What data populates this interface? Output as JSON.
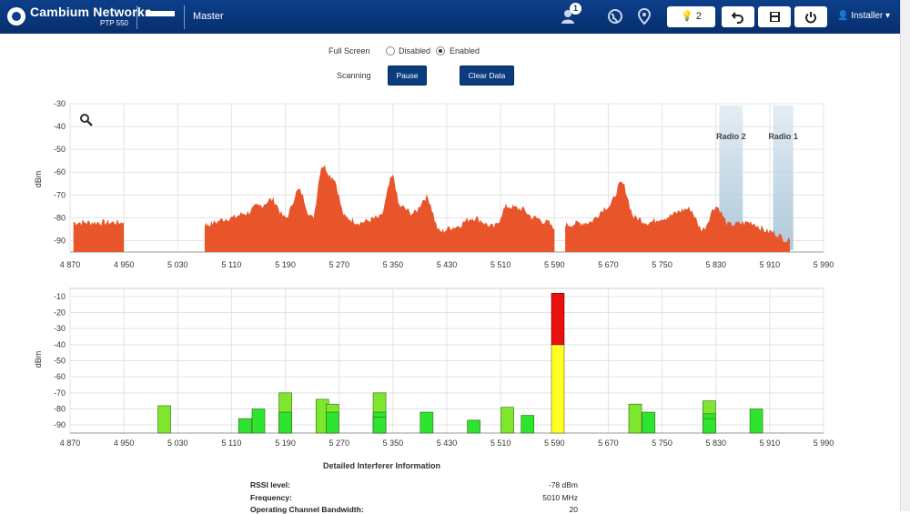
{
  "header": {
    "brand": "Cambium Networks",
    "model": "PTP 550",
    "role": "Master",
    "alarm_count": "1",
    "notifications_count": "2",
    "user": "Installer"
  },
  "controls": {
    "full_screen_label": "Full Screen",
    "disabled_label": "Disabled",
    "enabled_label": "Enabled",
    "scanning_label": "Scanning",
    "pause_label": "Pause",
    "clear_label": "Clear Data"
  },
  "spectrum": {
    "ylabel": "dBm",
    "yticks": [
      "-30",
      "-40",
      "-50",
      "-60",
      "-70",
      "-80",
      "-90"
    ],
    "xticks": [
      "4 870",
      "4 950",
      "5 030",
      "5 110",
      "5 190",
      "5 270",
      "5 350",
      "5 430",
      "5 510",
      "5 590",
      "5 670",
      "5 750",
      "5 830",
      "5 910",
      "5 990"
    ],
    "radio_labels": [
      "Radio 2",
      "Radio 1"
    ]
  },
  "chart_data": [
    {
      "type": "area",
      "title": "",
      "ylabel": "dBm",
      "ylim": [
        -95,
        -30
      ],
      "xlim": [
        4870,
        5990
      ],
      "x": [
        4875,
        4950,
        5007,
        5030,
        5070,
        5110,
        5130,
        5150,
        5170,
        5190,
        5210,
        5230,
        5245,
        5260,
        5280,
        5300,
        5330,
        5350,
        5360,
        5380,
        5400,
        5420,
        5440,
        5470,
        5500,
        5520,
        5540,
        5560,
        5580,
        5590,
        5600,
        5606,
        5640,
        5670,
        5690,
        5710,
        5730,
        5750,
        5790,
        5810,
        5830,
        5850,
        5880,
        5910,
        5940
      ],
      "series": [
        {
          "values": [
            -82,
            -82,
            null,
            null,
            -83,
            -80,
            -78,
            -75,
            -72,
            -80,
            -68,
            -80,
            -57,
            -62,
            -80,
            -82,
            -80,
            -62,
            -75,
            -78,
            -71,
            -86,
            -84,
            -80,
            -84,
            -75,
            -76,
            -80,
            -82,
            -85,
            null,
            -83,
            -82,
            -75,
            -65,
            -80,
            -82,
            -80,
            -76,
            -85,
            -75,
            -83,
            -82,
            -86,
            -90
          ]
        }
      ],
      "annotations": [
        "Radio 2",
        "Radio 1"
      ]
    },
    {
      "type": "bar",
      "title": "",
      "ylabel": "dBm",
      "ylim": [
        -95,
        -5
      ],
      "xlim": [
        4870,
        5990
      ],
      "bars": [
        {
          "freq": 5010,
          "value": -78
        },
        {
          "freq": 5130,
          "value": -86
        },
        {
          "freq": 5150,
          "value": -80
        },
        {
          "freq": 5190,
          "value": -70
        },
        {
          "freq": 5190,
          "value": -82
        },
        {
          "freq": 5245,
          "value": -74
        },
        {
          "freq": 5260,
          "value": -77
        },
        {
          "freq": 5260,
          "value": -82
        },
        {
          "freq": 5330,
          "value": -70
        },
        {
          "freq": 5330,
          "value": -82
        },
        {
          "freq": 5330,
          "value": -85
        },
        {
          "freq": 5400,
          "value": -82
        },
        {
          "freq": 5470,
          "value": -87
        },
        {
          "freq": 5520,
          "value": -79
        },
        {
          "freq": 5550,
          "value": -84
        },
        {
          "freq": 5595,
          "value": -8
        },
        {
          "freq": 5710,
          "value": -77
        },
        {
          "freq": 5730,
          "value": -82
        },
        {
          "freq": 5820,
          "value": -75
        },
        {
          "freq": 5820,
          "value": -83
        },
        {
          "freq": 5820,
          "value": -86
        },
        {
          "freq": 5890,
          "value": -80
        }
      ]
    }
  ],
  "bars_meta": {
    "yticks": [
      "-10",
      "-20",
      "-30",
      "-40",
      "-50",
      "-60",
      "-70",
      "-80",
      "-90"
    ]
  },
  "detail": {
    "title": "Detailed Interferer Information",
    "rows": [
      {
        "key": "RSSI level:",
        "value": "-78 dBm"
      },
      {
        "key": "Frequency:",
        "value": "5010 MHz"
      },
      {
        "key": "Operating Channel Bandwidth:",
        "value": "20"
      }
    ]
  },
  "colors": {
    "header": "#0c3f8a",
    "button": "#0b3d7e",
    "bar_green": "#2ee42e",
    "bar_light": "#7fe62e",
    "bar_yellow": "#ffff26",
    "bar_red": "#e81010"
  }
}
